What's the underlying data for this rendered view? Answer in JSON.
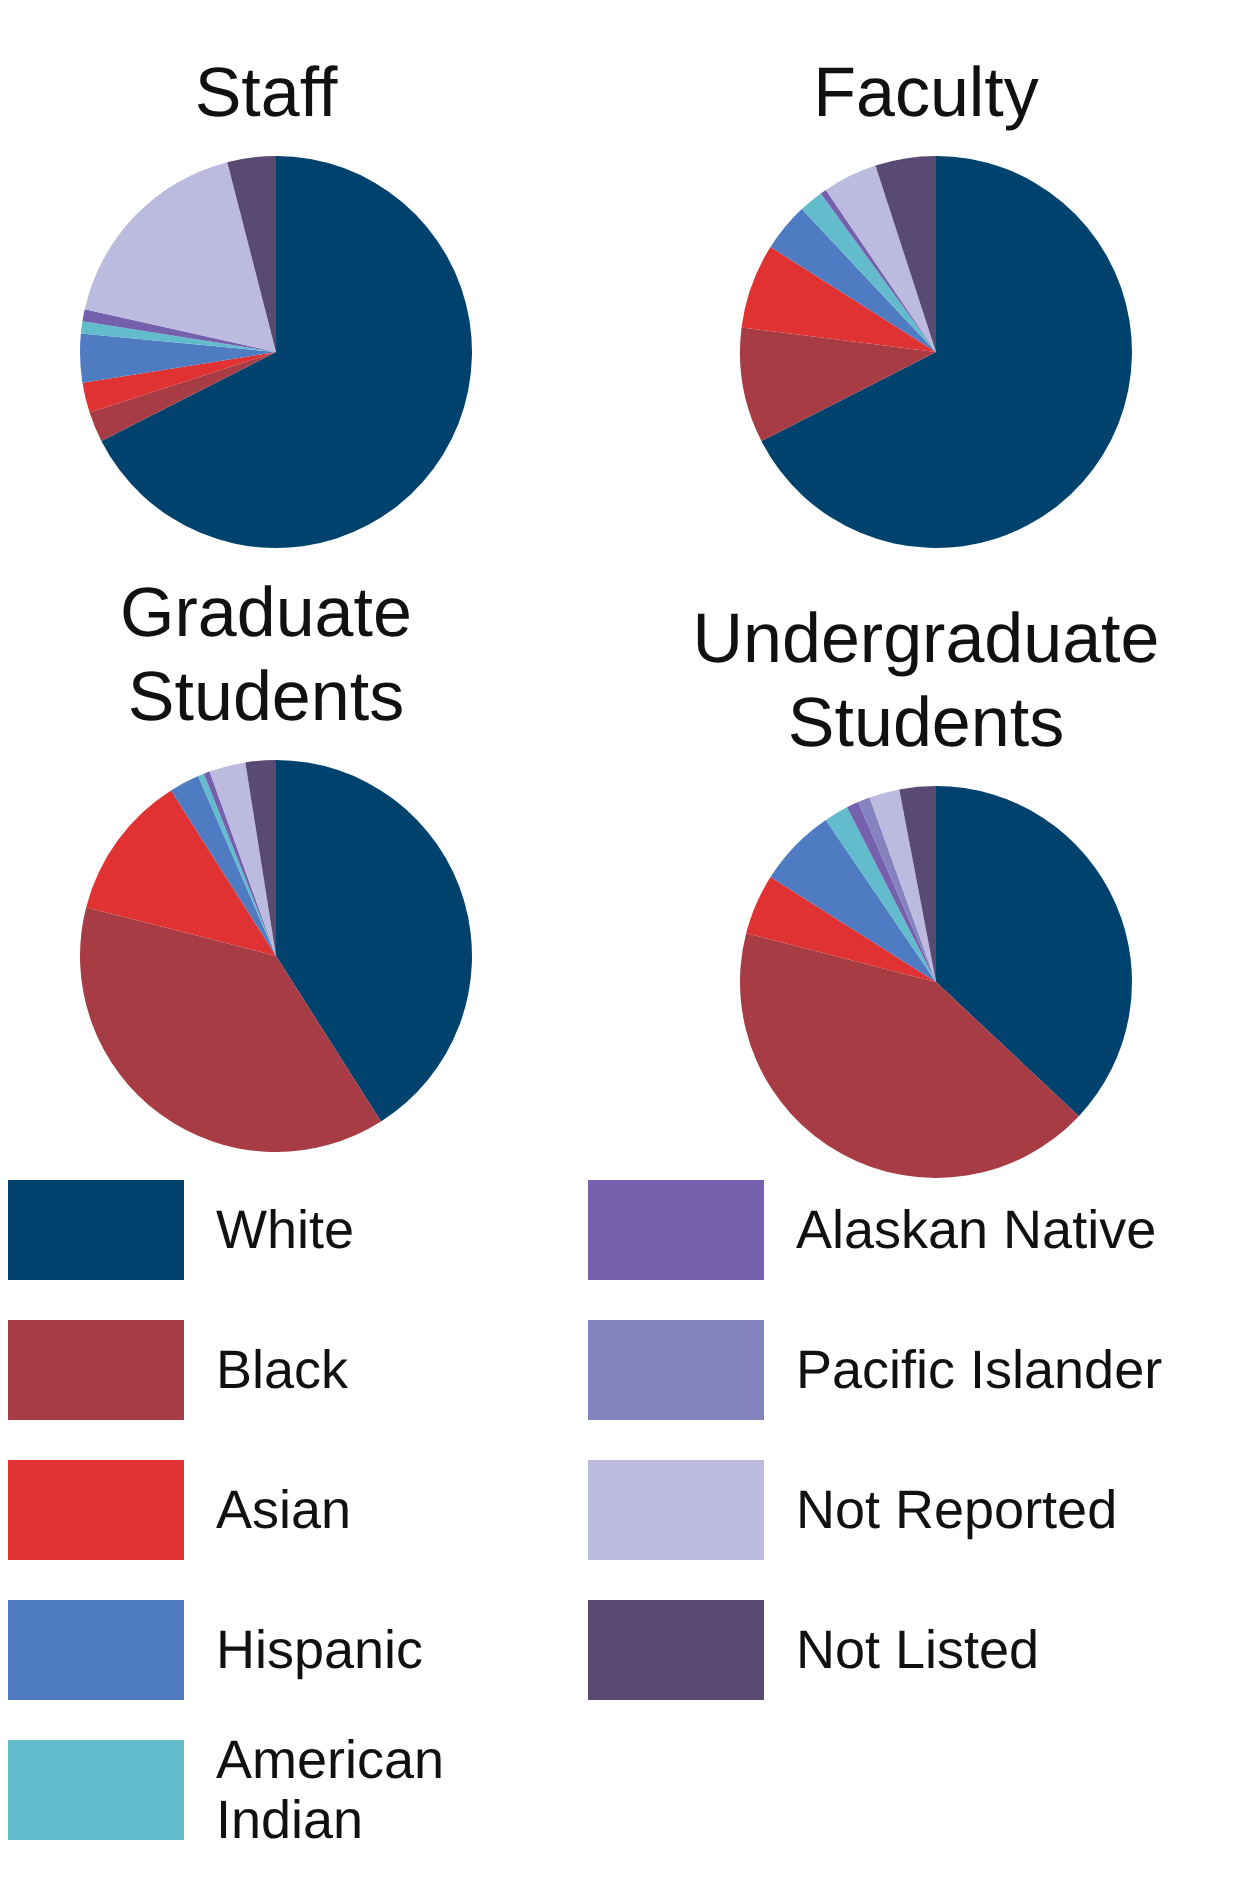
{
  "chart_data": [
    {
      "type": "pie",
      "title": "Staff",
      "categories": [
        "White",
        "Black",
        "Asian",
        "Hispanic",
        "American Indian",
        "Alaskan Native",
        "Pacific Islander",
        "Not Reported",
        "Not Listed"
      ],
      "values": [
        67.5,
        2.5,
        2.5,
        4,
        1,
        1,
        0,
        17.5,
        4
      ],
      "colors": [
        "#00426e",
        "#a83c45",
        "#e03232",
        "#4f7bc2",
        "#62bccc",
        "#7460ad",
        "#8582c0",
        "#bcbade",
        "#584a72"
      ],
      "legend": "bottom"
    },
    {
      "type": "pie",
      "title": "Faculty",
      "categories": [
        null,
        null,
        null,
        null,
        null,
        null,
        null,
        null,
        null
      ],
      "values": [
        67.5,
        9.5,
        7,
        4,
        2,
        0.5,
        0,
        4.5,
        5
      ],
      "colors": [
        "#00426e",
        "#a83c45",
        "#e03232",
        "#4f7bc2",
        "#62bccc",
        "#7460ad",
        "#8582c0",
        "#bcbade",
        "#584a72"
      ]
    },
    {
      "type": "pie",
      "title": "Graduate Students",
      "categories": [
        null,
        null,
        null,
        null,
        null,
        null,
        null,
        null,
        null
      ],
      "values": [
        41,
        38,
        12,
        2.5,
        0.5,
        0.5,
        0,
        3,
        2.5
      ],
      "colors": [
        "#00426e",
        "#a83c45",
        "#e03232",
        "#4f7bc2",
        "#62bccc",
        "#7460ad",
        "#8582c0",
        "#bcbade",
        "#584a72"
      ]
    },
    {
      "type": "pie",
      "title": "Undergraduate Students",
      "categories": [
        null,
        null,
        null,
        null,
        null,
        null,
        null,
        null,
        null
      ],
      "values": [
        37,
        42,
        5,
        6.5,
        2,
        1,
        1,
        2.5,
        3
      ],
      "colors": [
        "#00426e",
        "#a83c45",
        "#e03232",
        "#4f7bc2",
        "#62bccc",
        "#7460ad",
        "#8582c0",
        "#bcbade",
        "#584a72"
      ]
    }
  ]
}
